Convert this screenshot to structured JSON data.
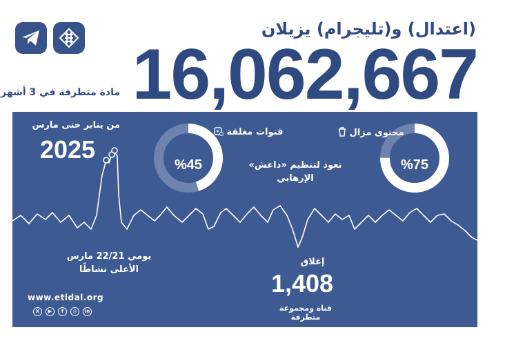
{
  "header": {
    "headline": "(اعتدال) و(تليجرام) يزيلان",
    "big_number": "16,062,667",
    "subtitle": "مادة متطرفة في 3 أشهر"
  },
  "logos": {
    "telegram": "telegram-icon",
    "etidal": "etidal-logo"
  },
  "panel": {
    "period_label": "من يناير حتى مارس",
    "period_year": "2025",
    "cards": [
      {
        "title": "قنوات مغلقة",
        "icon": "video-blocked-icon",
        "value": "%45",
        "percent": 45
      },
      {
        "title": "محتوى مزال",
        "icon": "trash-icon",
        "value": "%75",
        "percent": 75
      }
    ],
    "mid_text_line1": "تعود لتنظيم «داعش»",
    "mid_text_line2": "الإرهابي",
    "peak_line1": "يومي 22/21 مارس",
    "peak_line2": "الأعلى نشاطًا",
    "closure_label": "إغلاق",
    "closure_value": "1,408",
    "closure_desc": "قناة ومجموعة متطرفة",
    "website": "www.etidal.org",
    "socials": [
      "X",
      "▶",
      "f",
      "◎",
      "in"
    ]
  },
  "colors": {
    "primary": "#2f4a80",
    "panel": "#3e5a93",
    "white": "#ffffff"
  }
}
